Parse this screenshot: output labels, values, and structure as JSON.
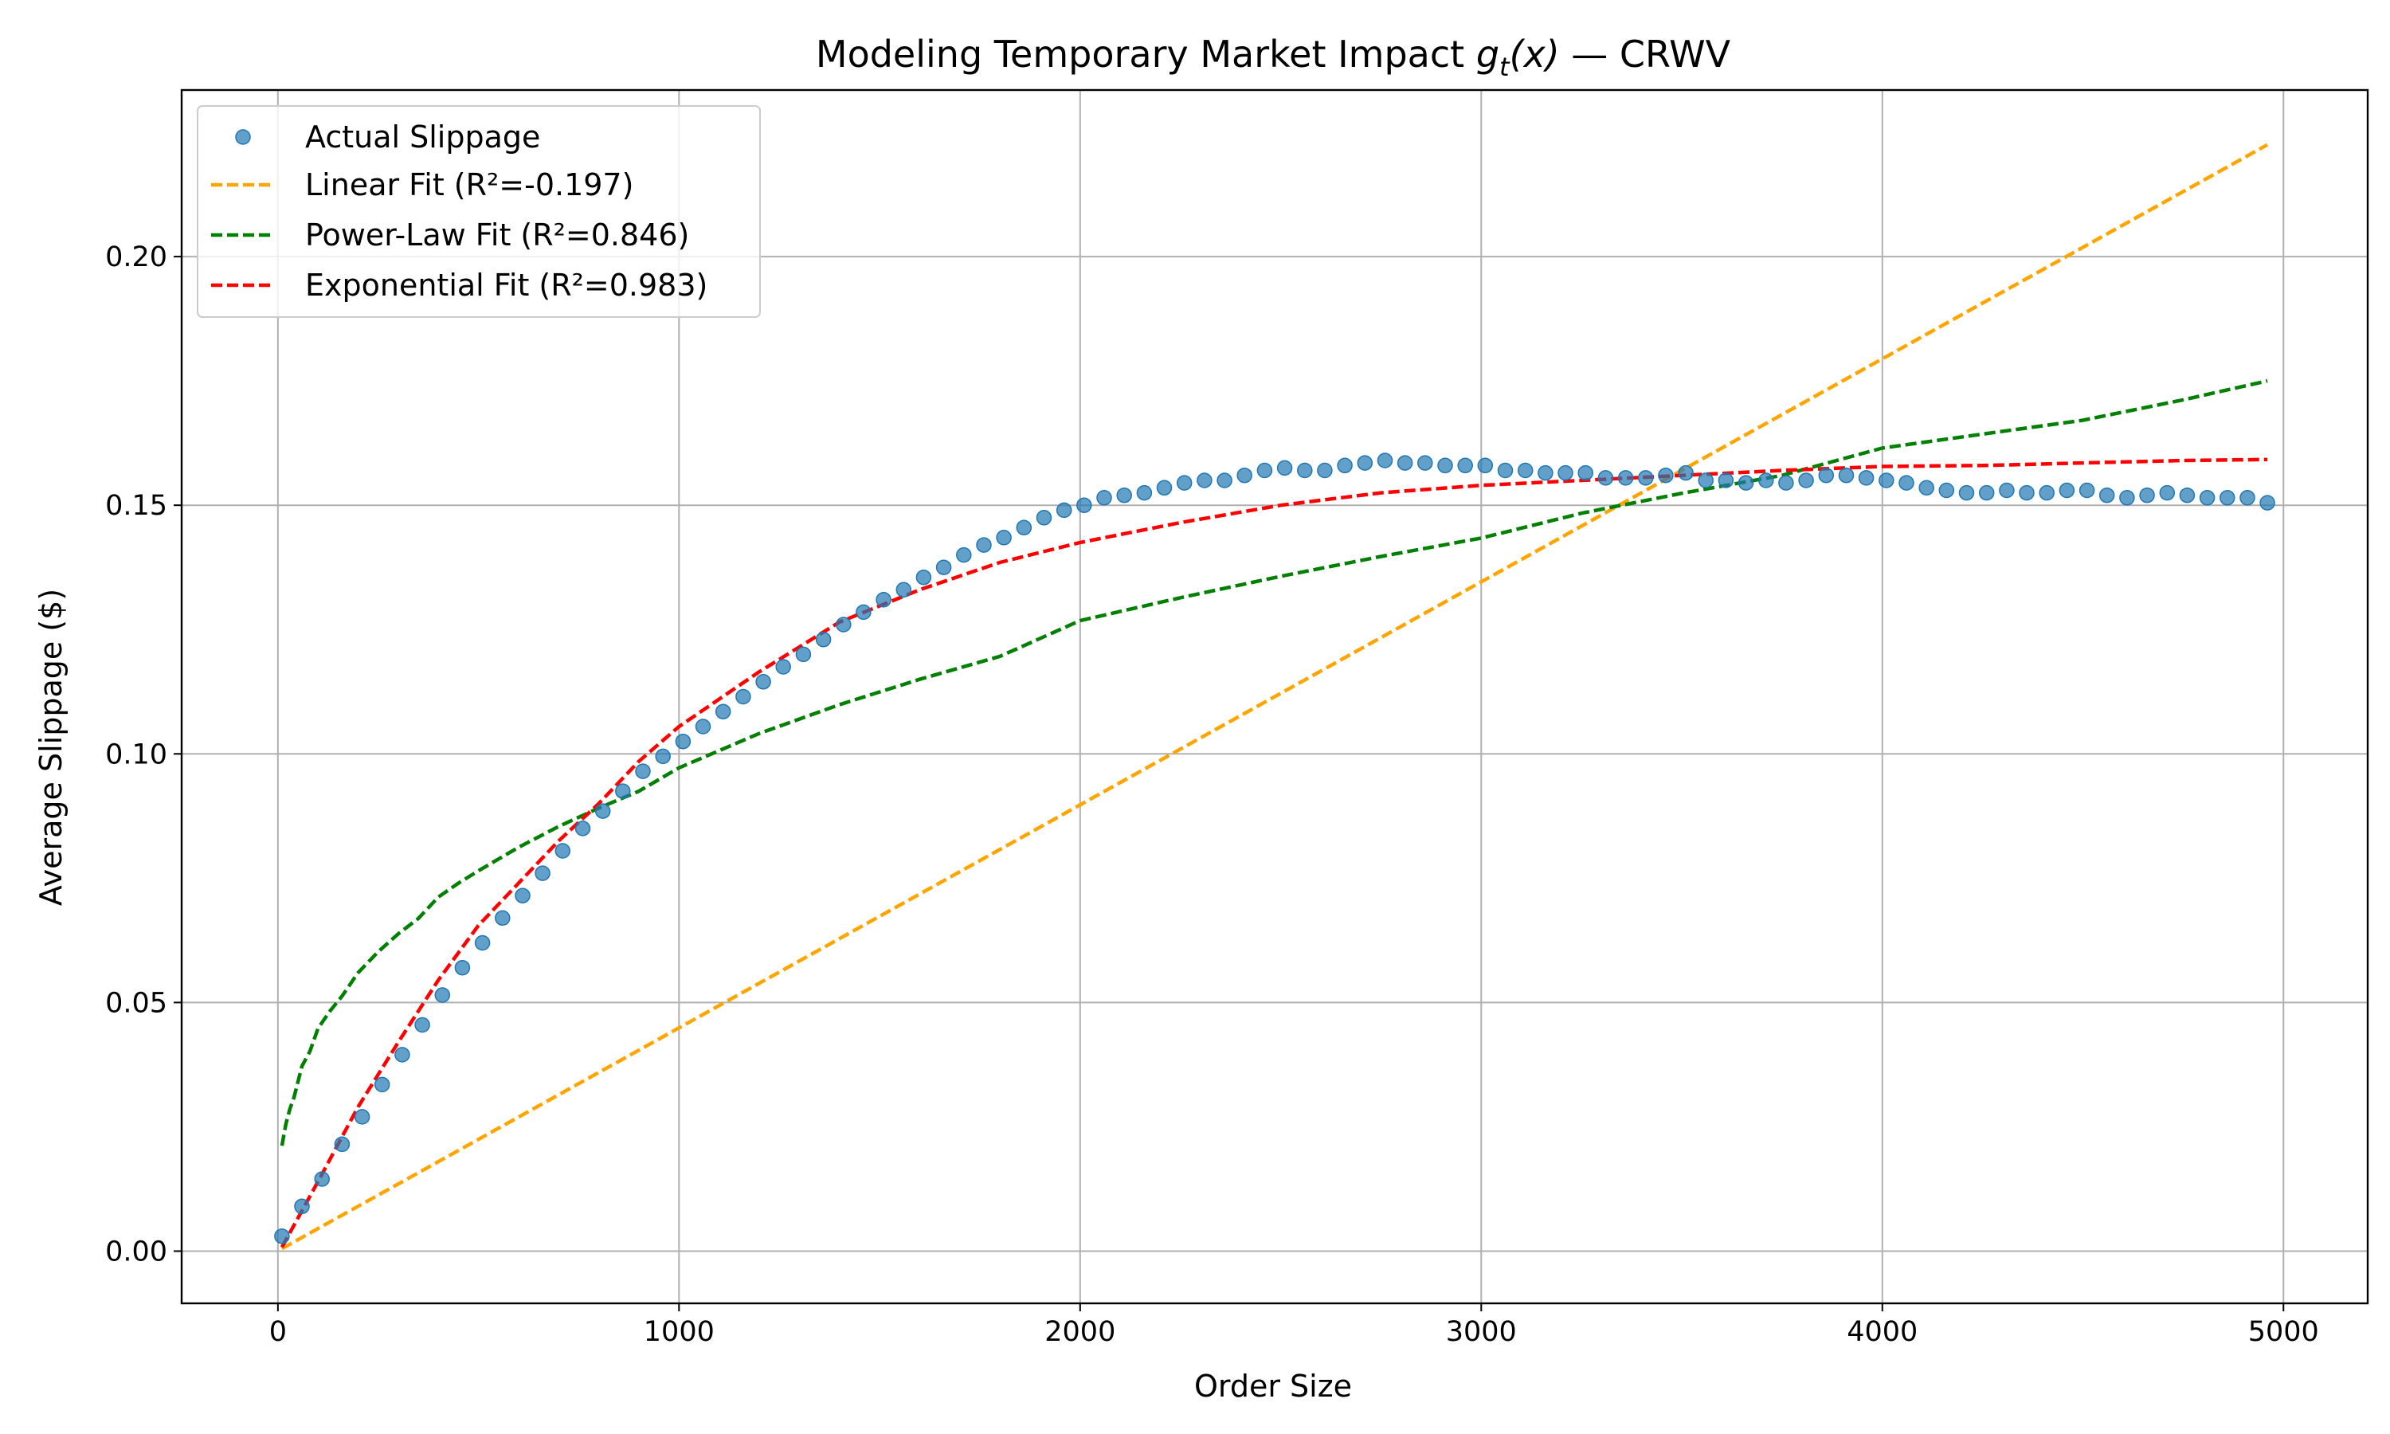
{
  "chart_data": {
    "type": "scatter",
    "title_main": "Modeling Temporary Market Impact ",
    "title_func": "g",
    "title_sub": "t",
    "title_arg": "(x)",
    "title_suffix": " — CRWV",
    "xlabel": "Order Size",
    "ylabel": "Average Slippage ($)",
    "xlim": [
      -240,
      5210
    ],
    "ylim": [
      -0.0105,
      0.2335
    ],
    "xticks": [
      0,
      1000,
      2000,
      3000,
      4000,
      5000
    ],
    "xtick_labels": [
      "0",
      "1000",
      "2000",
      "3000",
      "4000",
      "5000"
    ],
    "yticks": [
      0.0,
      0.05,
      0.1,
      0.15,
      0.2
    ],
    "ytick_labels": [
      "0.00",
      "0.05",
      "0.10",
      "0.15",
      "0.20"
    ],
    "grid": true,
    "legend_position": "top-left",
    "series": [
      {
        "name": "Actual Slippage",
        "kind": "scatter",
        "color": "#1f77b4",
        "x": [
          10,
          60,
          110,
          160,
          210,
          260,
          310,
          360,
          410,
          460,
          510,
          560,
          610,
          660,
          710,
          760,
          810,
          860,
          910,
          960,
          1010,
          1060,
          1110,
          1160,
          1210,
          1260,
          1310,
          1360,
          1410,
          1460,
          1510,
          1560,
          1610,
          1660,
          1710,
          1760,
          1810,
          1860,
          1910,
          1960,
          2010,
          2060,
          2110,
          2160,
          2210,
          2260,
          2310,
          2360,
          2410,
          2460,
          2510,
          2560,
          2610,
          2660,
          2710,
          2760,
          2810,
          2860,
          2910,
          2960,
          3010,
          3060,
          3110,
          3160,
          3210,
          3260,
          3310,
          3360,
          3410,
          3460,
          3510,
          3560,
          3610,
          3660,
          3710,
          3760,
          3810,
          3860,
          3910,
          3960,
          4010,
          4060,
          4110,
          4160,
          4210,
          4260,
          4310,
          4360,
          4410,
          4460,
          4510,
          4560,
          4610,
          4660,
          4710,
          4760,
          4810,
          4860,
          4910,
          4960
        ],
        "y": [
          0.003,
          0.009,
          0.0145,
          0.0215,
          0.027,
          0.0335,
          0.0395,
          0.0455,
          0.0515,
          0.057,
          0.062,
          0.067,
          0.0715,
          0.076,
          0.0805,
          0.085,
          0.0885,
          0.0925,
          0.0965,
          0.0995,
          0.1025,
          0.1055,
          0.1085,
          0.1115,
          0.1145,
          0.1175,
          0.12,
          0.123,
          0.126,
          0.1285,
          0.131,
          0.133,
          0.1355,
          0.1375,
          0.14,
          0.142,
          0.1435,
          0.1455,
          0.1475,
          0.149,
          0.15,
          0.1515,
          0.152,
          0.1525,
          0.1535,
          0.1545,
          0.155,
          0.155,
          0.156,
          0.157,
          0.1575,
          0.157,
          0.157,
          0.158,
          0.1585,
          0.159,
          0.1585,
          0.1585,
          0.158,
          0.158,
          0.158,
          0.157,
          0.157,
          0.1565,
          0.1565,
          0.1565,
          0.1555,
          0.1555,
          0.1555,
          0.156,
          0.1565,
          0.155,
          0.155,
          0.1545,
          0.155,
          0.1545,
          0.155,
          0.156,
          0.156,
          0.1555,
          0.155,
          0.1545,
          0.1535,
          0.153,
          0.1525,
          0.1525,
          0.153,
          0.1525,
          0.1525,
          0.153,
          0.153,
          0.152,
          0.1515,
          0.152,
          0.1525,
          0.152,
          0.1515,
          0.1515,
          0.1515,
          0.1505
        ]
      },
      {
        "name": "Linear Fit (R²=-0.197)",
        "kind": "line",
        "color": "#ffa500",
        "dashed": true,
        "x": [
          10,
          4960
        ],
        "y": [
          0.0005,
          0.2225
        ]
      },
      {
        "name": "Power-Law Fit (R²=0.846)",
        "kind": "line",
        "color": "#008000",
        "dashed": true,
        "x": [
          10,
          20,
          30,
          40,
          60,
          80,
          100,
          130,
          160,
          200,
          250,
          300,
          350,
          400,
          450,
          500,
          600,
          700,
          800,
          900,
          1000,
          1200,
          1400,
          1600,
          1800,
          2000,
          2250,
          2500,
          2750,
          3000,
          3250,
          3500,
          3750,
          4000,
          4250,
          4500,
          4750,
          4960
        ],
        "y": [
          0.0212,
          0.0256,
          0.0286,
          0.0309,
          0.0372,
          0.0402,
          0.0448,
          0.0483,
          0.0513,
          0.056,
          0.0602,
          0.0638,
          0.0669,
          0.0712,
          0.074,
          0.0765,
          0.0812,
          0.0854,
          0.0891,
          0.0925,
          0.0972,
          0.1041,
          0.1099,
          0.115,
          0.1196,
          0.1268,
          0.1314,
          0.1357,
          0.1397,
          0.1434,
          0.1484,
          0.1524,
          0.156,
          0.1615,
          0.1643,
          0.1671,
          0.1712,
          0.175
        ]
      },
      {
        "name": "Exponential Fit (R²=0.983)",
        "kind": "line",
        "color": "#ff0000",
        "dashed": true,
        "x": [
          10,
          100,
          200,
          300,
          400,
          500,
          600,
          700,
          800,
          900,
          1000,
          1200,
          1400,
          1600,
          1800,
          2000,
          2250,
          2500,
          2750,
          3000,
          3250,
          3500,
          3750,
          4000,
          4250,
          4500,
          4750,
          4960
        ],
        "y": [
          0.0008,
          0.014,
          0.029,
          0.042,
          0.0545,
          0.0655,
          0.074,
          0.0825,
          0.09,
          0.0985,
          0.1055,
          0.1165,
          0.1265,
          0.133,
          0.1385,
          0.1425,
          0.1465,
          0.15,
          0.1525,
          0.154,
          0.155,
          0.156,
          0.157,
          0.1578,
          0.158,
          0.1585,
          0.159,
          0.1592
        ]
      }
    ]
  }
}
